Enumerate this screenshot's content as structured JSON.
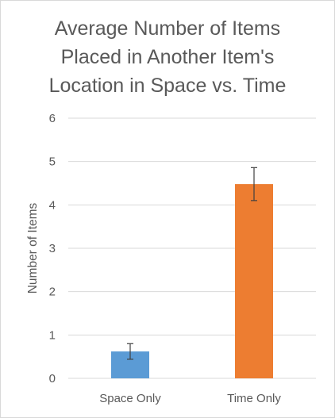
{
  "chart_data": {
    "type": "bar",
    "title_lines": [
      "Average Number of Items",
      "Placed in Another Item's",
      "Location in Space vs. Time"
    ],
    "xlabel": "",
    "ylabel": "Number of Items",
    "categories": [
      "Space Only",
      "Time Only"
    ],
    "values": [
      0.62,
      4.48
    ],
    "error": [
      0.18,
      0.38
    ],
    "colors": [
      "#5b9bd5",
      "#ed7d31"
    ],
    "ylim": [
      0,
      6
    ],
    "yticks": [
      "0",
      "1",
      "2",
      "3",
      "4",
      "5",
      "6"
    ],
    "grid": true,
    "legend": "none"
  }
}
